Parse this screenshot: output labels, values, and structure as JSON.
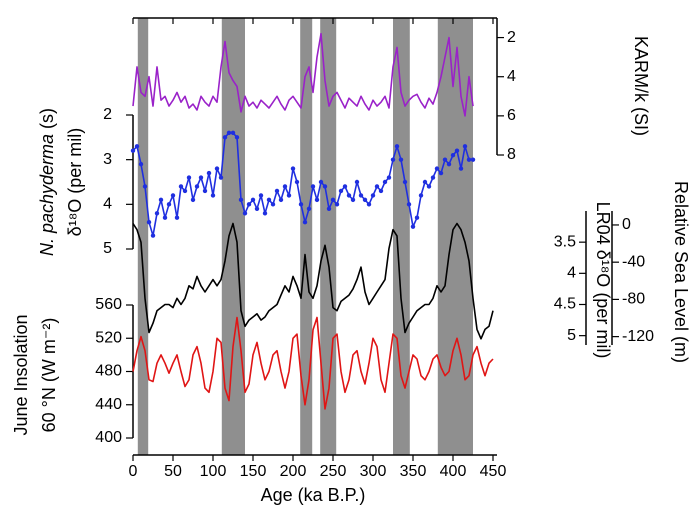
{
  "chart_data": {
    "type": "line",
    "xlabel": "Age (ka B.P.)",
    "xlim": [
      0,
      450
    ],
    "xticks": [
      0,
      50,
      100,
      150,
      200,
      250,
      300,
      350,
      400,
      450
    ],
    "shaded_intervals": [
      [
        6,
        19
      ],
      [
        111,
        140
      ],
      [
        209,
        224
      ],
      [
        234,
        254
      ],
      [
        325,
        346
      ],
      [
        381,
        425
      ]
    ],
    "shade_color": "#8f8f8f",
    "panels": [
      {
        "ylabel": [
          [
            "KARM/k (SI)"
          ]
        ],
        "side": "right",
        "ylim": [
          8,
          1
        ],
        "yticks": [
          2,
          4,
          6,
          8
        ],
        "color": "#9a22c9",
        "x": [
          0,
          5,
          10,
          15,
          20,
          25,
          30,
          35,
          40,
          45,
          50,
          55,
          60,
          65,
          70,
          75,
          80,
          85,
          90,
          95,
          100,
          105,
          110,
          115,
          120,
          125,
          130,
          135,
          140,
          145,
          150,
          155,
          160,
          165,
          170,
          175,
          180,
          185,
          190,
          195,
          200,
          205,
          210,
          215,
          220,
          225,
          230,
          235,
          240,
          245,
          250,
          255,
          260,
          265,
          270,
          275,
          280,
          285,
          290,
          295,
          300,
          305,
          310,
          315,
          320,
          325,
          330,
          335,
          340,
          345,
          350,
          355,
          360,
          365,
          370,
          375,
          380,
          385,
          390,
          395,
          400,
          405,
          410,
          415,
          420,
          425
        ],
        "values": [
          5.5,
          3.5,
          4.8,
          5.0,
          4.0,
          5.5,
          3.5,
          5.2,
          5.0,
          5.5,
          5.2,
          4.8,
          5.3,
          5.0,
          5.6,
          5.4,
          5.7,
          5.0,
          5.3,
          5.5,
          5.0,
          5.3,
          3.5,
          2.2,
          3.8,
          4.2,
          4.5,
          5.8,
          5.0,
          5.5,
          5.3,
          5.6,
          5.2,
          5.4,
          5.6,
          5.3,
          5.0,
          5.4,
          5.7,
          5.2,
          5.0,
          5.3,
          5.6,
          4.0,
          3.5,
          4.8,
          3.0,
          1.8,
          4.2,
          5.5,
          5.0,
          4.8,
          5.2,
          5.6,
          5.1,
          5.3,
          5.5,
          5.0,
          5.4,
          5.7,
          5.2,
          5.5,
          5.3,
          5.0,
          5.6,
          3.5,
          2.5,
          4.8,
          5.5,
          5.2,
          5.0,
          4.9,
          5.3,
          5.6,
          5.1,
          5.4,
          4.8,
          4.0,
          3.0,
          2.0,
          4.5,
          2.5,
          5.0,
          6.0,
          4.0,
          5.5
        ]
      },
      {
        "ylabel": [
          [
            "N. pachyderma",
            " (s)"
          ],
          [
            "δ¹⁸O (per mil)"
          ]
        ],
        "ylabel_italic": true,
        "side": "left",
        "ylim": [
          5,
          2
        ],
        "yticks": [
          2,
          3,
          4,
          5
        ],
        "color": "#1f2fe0",
        "markers": true,
        "x": [
          0,
          5,
          10,
          15,
          20,
          25,
          30,
          35,
          40,
          45,
          50,
          55,
          60,
          65,
          70,
          75,
          80,
          85,
          90,
          95,
          100,
          105,
          110,
          115,
          120,
          125,
          130,
          135,
          140,
          145,
          150,
          155,
          160,
          165,
          170,
          175,
          180,
          185,
          190,
          195,
          200,
          205,
          210,
          215,
          220,
          225,
          230,
          235,
          240,
          245,
          250,
          255,
          260,
          265,
          270,
          275,
          280,
          285,
          290,
          295,
          300,
          305,
          310,
          315,
          320,
          325,
          330,
          335,
          340,
          345,
          350,
          355,
          360,
          365,
          370,
          375,
          380,
          385,
          390,
          395,
          400,
          405,
          410,
          415,
          420,
          425
        ],
        "values": [
          2.8,
          2.7,
          3.1,
          3.6,
          4.4,
          4.7,
          4.2,
          3.9,
          4.3,
          4.0,
          3.8,
          4.3,
          3.6,
          3.7,
          3.4,
          3.9,
          3.6,
          3.4,
          3.7,
          3.3,
          3.8,
          3.2,
          3.4,
          2.5,
          2.4,
          2.4,
          2.5,
          3.9,
          4.2,
          4.0,
          3.9,
          4.1,
          3.8,
          4.2,
          3.9,
          4.0,
          3.7,
          3.9,
          3.6,
          3.8,
          3.2,
          3.5,
          4.0,
          4.4,
          4.1,
          3.6,
          3.9,
          3.5,
          3.6,
          4.1,
          3.9,
          4.0,
          3.7,
          3.6,
          3.8,
          3.9,
          3.5,
          3.8,
          3.9,
          4.0,
          3.8,
          3.6,
          3.7,
          3.5,
          3.4,
          3.0,
          2.7,
          3.0,
          3.5,
          4.0,
          4.5,
          4.3,
          3.8,
          3.5,
          3.6,
          3.4,
          3.2,
          3.3,
          3.0,
          3.1,
          2.9,
          2.8,
          3.2,
          2.7,
          3.0,
          3.0
        ]
      },
      {
        "ylabel": [
          [
            "LR04 δ¹⁸O (per mil)"
          ]
        ],
        "side": "left",
        "ylim": [
          5.15,
          3.0
        ],
        "yticks": [
          3.5,
          4,
          4.5,
          5
        ],
        "color": "#000000",
        "x": [
          0,
          5,
          10,
          15,
          20,
          25,
          30,
          35,
          40,
          45,
          50,
          55,
          60,
          65,
          70,
          75,
          80,
          85,
          90,
          95,
          100,
          105,
          110,
          115,
          120,
          125,
          130,
          135,
          140,
          145,
          150,
          155,
          160,
          165,
          170,
          175,
          180,
          185,
          190,
          195,
          200,
          205,
          210,
          215,
          220,
          225,
          230,
          235,
          240,
          245,
          250,
          255,
          260,
          265,
          270,
          275,
          280,
          285,
          290,
          295,
          300,
          305,
          310,
          315,
          320,
          325,
          330,
          335,
          340,
          345,
          350,
          355,
          360,
          365,
          370,
          375,
          380,
          385,
          390,
          395,
          400,
          405,
          410,
          415,
          420,
          425,
          430,
          435,
          440,
          445,
          450
        ],
        "values": [
          3.2,
          3.3,
          3.5,
          4.4,
          4.95,
          4.8,
          4.6,
          4.55,
          4.5,
          4.5,
          4.55,
          4.4,
          4.5,
          4.4,
          4.2,
          4.25,
          4.05,
          4.2,
          4.3,
          4.2,
          4.1,
          4.2,
          4.1,
          3.8,
          3.4,
          3.2,
          3.5,
          4.6,
          4.85,
          4.75,
          4.7,
          4.65,
          4.75,
          4.7,
          4.6,
          4.55,
          4.5,
          4.35,
          4.2,
          4.3,
          4.05,
          4.2,
          4.4,
          3.7,
          4.3,
          4.4,
          4.2,
          3.8,
          3.55,
          3.9,
          4.55,
          4.6,
          4.45,
          4.4,
          4.35,
          4.25,
          4.1,
          3.9,
          4.3,
          4.5,
          4.4,
          4.3,
          4.2,
          4.1,
          3.6,
          3.3,
          3.4,
          4.4,
          4.95,
          4.8,
          4.7,
          4.6,
          4.55,
          4.5,
          4.5,
          4.4,
          4.2,
          4.3,
          4.2,
          3.7,
          3.3,
          3.2,
          3.3,
          3.5,
          3.8,
          4.4,
          4.9,
          5.05,
          4.9,
          4.85,
          4.6
        ]
      },
      {
        "ylabel": [
          [
            "Relative Sea Level (m)"
          ]
        ],
        "side": "right",
        "ylim": [
          -129,
          15
        ],
        "yticks": [
          0,
          -40,
          -80,
          -120
        ]
      },
      {
        "ylabel": [
          [
            "June Insolation"
          ],
          [
            "60 °N (W m⁻²)"
          ]
        ],
        "side": "left",
        "ylim": [
          400,
          560
        ],
        "yticks": [
          400,
          440,
          480,
          520,
          560
        ],
        "color": "#e01515",
        "x": [
          0,
          5,
          10,
          15,
          20,
          25,
          30,
          35,
          40,
          45,
          50,
          55,
          60,
          65,
          70,
          75,
          80,
          85,
          90,
          95,
          100,
          105,
          110,
          115,
          120,
          125,
          130,
          135,
          140,
          145,
          150,
          155,
          160,
          165,
          170,
          175,
          180,
          185,
          190,
          195,
          200,
          205,
          210,
          215,
          220,
          225,
          230,
          235,
          240,
          245,
          250,
          255,
          260,
          265,
          270,
          275,
          280,
          285,
          290,
          295,
          300,
          305,
          310,
          315,
          320,
          325,
          330,
          335,
          340,
          345,
          350,
          355,
          360,
          365,
          370,
          375,
          380,
          385,
          390,
          395,
          400,
          405,
          410,
          415,
          420,
          425,
          430,
          435,
          440,
          445,
          450
        ],
        "values": [
          480,
          505,
          522,
          505,
          470,
          468,
          490,
          500,
          490,
          478,
          490,
          500,
          480,
          462,
          470,
          500,
          510,
          490,
          460,
          455,
          480,
          520,
          515,
          460,
          445,
          510,
          545,
          505,
          455,
          465,
          500,
          515,
          490,
          470,
          480,
          500,
          505,
          480,
          460,
          480,
          520,
          525,
          475,
          440,
          470,
          530,
          545,
          490,
          435,
          460,
          520,
          525,
          480,
          455,
          470,
          500,
          505,
          480,
          465,
          490,
          520,
          510,
          470,
          455,
          490,
          525,
          520,
          475,
          460,
          480,
          500,
          495,
          475,
          470,
          480,
          495,
          500,
          485,
          475,
          480,
          505,
          520,
          500,
          470,
          475,
          500,
          510,
          490,
          475,
          490,
          495
        ]
      }
    ]
  }
}
